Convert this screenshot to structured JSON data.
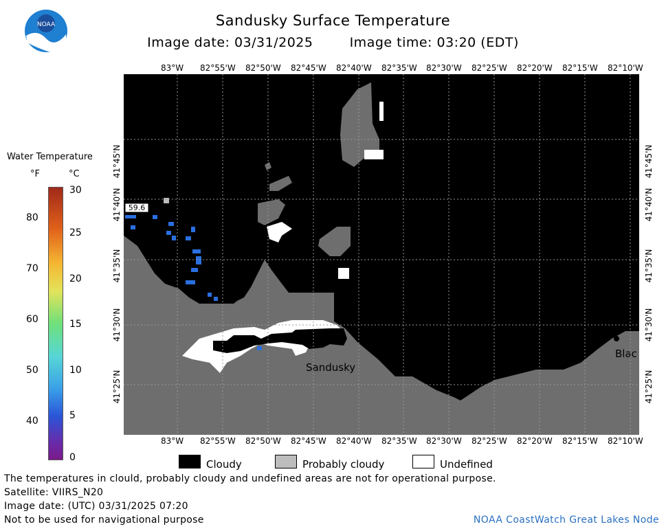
{
  "header": {
    "title": "Sandusky Surface Temperature",
    "subtitle_date": "Image date: 03/31/2025",
    "subtitle_time": "Image time: 03:20 (EDT)",
    "logo_text": "NOAA"
  },
  "axes": {
    "lon_labels": [
      "83°W",
      "82°55'W",
      "82°50'W",
      "82°45'W",
      "82°40'W",
      "82°35'W",
      "82°30'W",
      "82°25'W",
      "82°20'W",
      "82°15'W",
      "82°10'W"
    ],
    "lat_labels": [
      "41°45'N",
      "41°40'N",
      "41°35'N",
      "41°30'N",
      "41°25'N"
    ]
  },
  "map": {
    "place_labels": [
      "Sandusky",
      "Blac"
    ],
    "temp_label": "59.6",
    "colors": {
      "water": "#000000",
      "land": "#6e6e6e",
      "cloud_probable": "#7d7d7d",
      "undefined": "#ffffff",
      "data_pixels": "#2a6fe0"
    }
  },
  "colorbar": {
    "title": "Water Temperature",
    "unit_f": "°F",
    "unit_c": "°C",
    "f_ticks": [
      "80",
      "70",
      "60",
      "50",
      "40"
    ],
    "c_ticks": [
      "30",
      "25",
      "20",
      "15",
      "10",
      "5",
      "0"
    ]
  },
  "legend": {
    "cloudy": "Cloudy",
    "probably_cloudy": "Probably cloudy",
    "undefined": "Undefined"
  },
  "footer": {
    "line1": "The temperatures in clould, probably cloudy and undefined areas are not for operational purpose.",
    "line2": "Satellite: VIIRS_N20",
    "line3": "Image date: (UTC) 03/31/2025  07:20",
    "line4": "Not to be used for navigational purpose",
    "credit": "NOAA CoastWatch Great Lakes Node"
  }
}
